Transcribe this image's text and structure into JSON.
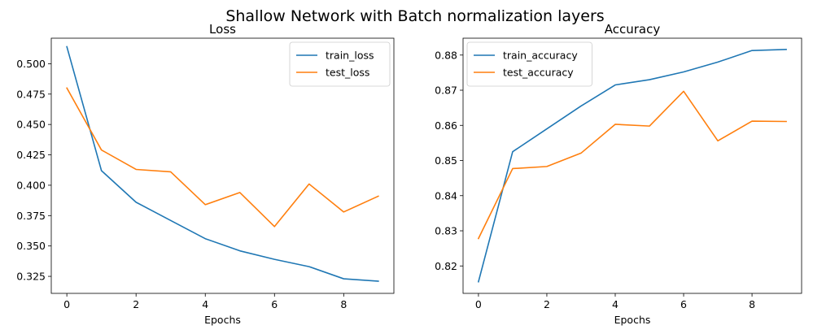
{
  "figure": {
    "title": "Shallow Network with Batch normalization layers"
  },
  "chart_data": [
    {
      "type": "line",
      "title": "Loss",
      "xlabel": "Epochs",
      "ylabel": "",
      "x": [
        0,
        1,
        2,
        3,
        4,
        5,
        6,
        7,
        8,
        9
      ],
      "xlim": [
        -0.45,
        9.45
      ],
      "ylim": [
        0.311,
        0.521
      ],
      "xticks": [
        0,
        2,
        4,
        6,
        8
      ],
      "yticks": [
        0.325,
        0.35,
        0.375,
        0.4,
        0.425,
        0.45,
        0.475,
        0.5
      ],
      "ytick_decimals": 3,
      "legend": "upper-right",
      "grid": false,
      "series": [
        {
          "name": "train_loss",
          "color": "#1f77b4",
          "values": [
            0.514,
            0.412,
            0.386,
            0.371,
            0.356,
            0.346,
            0.339,
            0.333,
            0.323,
            0.321
          ]
        },
        {
          "name": "test_loss",
          "color": "#ff7f0e",
          "values": [
            0.48,
            0.429,
            0.413,
            0.411,
            0.384,
            0.394,
            0.366,
            0.401,
            0.378,
            0.391
          ]
        }
      ]
    },
    {
      "type": "line",
      "title": "Accuracy",
      "xlabel": "Epochs",
      "ylabel": "",
      "x": [
        0,
        1,
        2,
        3,
        4,
        5,
        6,
        7,
        8,
        9
      ],
      "xlim": [
        -0.45,
        9.45
      ],
      "ylim": [
        0.8122,
        0.8848
      ],
      "xticks": [
        0,
        2,
        4,
        6,
        8
      ],
      "yticks": [
        0.82,
        0.83,
        0.84,
        0.85,
        0.86,
        0.87,
        0.88
      ],
      "ytick_decimals": 2,
      "legend": "upper-left",
      "grid": false,
      "series": [
        {
          "name": "train_accuracy",
          "color": "#1f77b4",
          "values": [
            0.8155,
            0.8525,
            0.859,
            0.8655,
            0.8715,
            0.873,
            0.8752,
            0.878,
            0.8813,
            0.8816
          ]
        },
        {
          "name": "test_accuracy",
          "color": "#ff7f0e",
          "values": [
            0.8278,
            0.8477,
            0.8483,
            0.8521,
            0.8603,
            0.8598,
            0.8697,
            0.8556,
            0.8612,
            0.8611
          ]
        }
      ]
    }
  ]
}
